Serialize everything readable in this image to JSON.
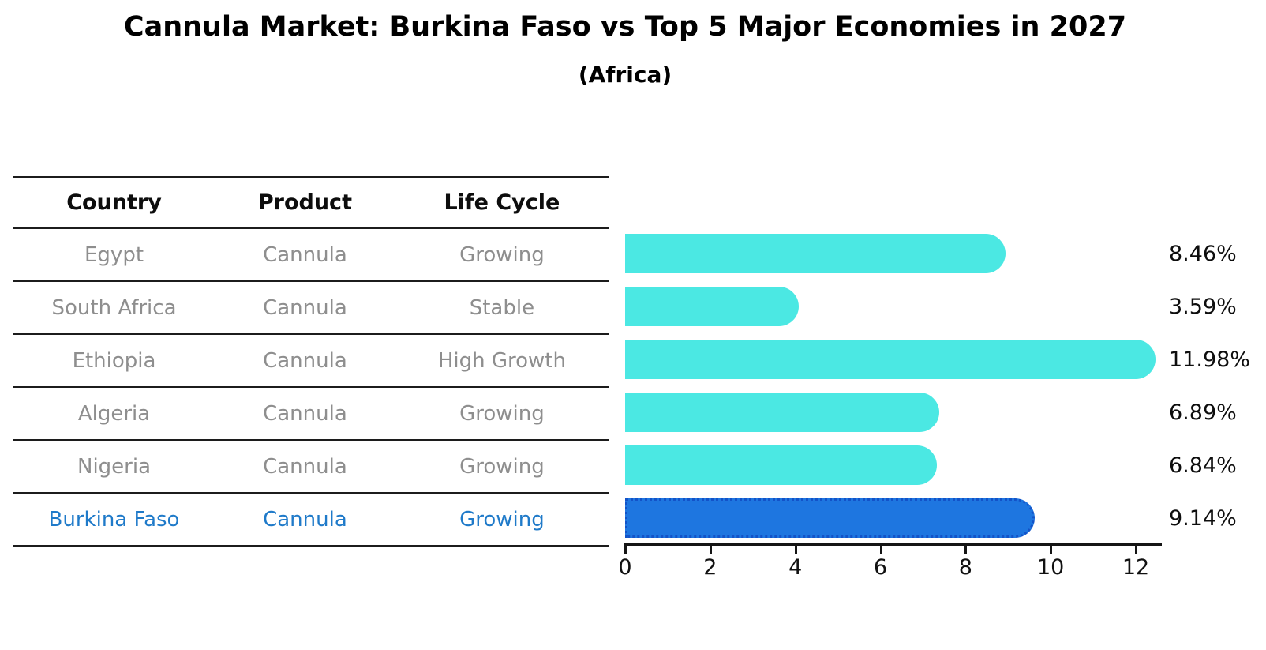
{
  "title": "Cannula Market: Burkina Faso vs Top 5 Major Economies in 2027",
  "subtitle": "(Africa)",
  "table": {
    "headers": [
      "Country",
      "Product",
      "Life Cycle"
    ],
    "rows": [
      {
        "country": "Egypt",
        "product": "Cannula",
        "life_cycle": "Growing",
        "highlight": false
      },
      {
        "country": "South Africa",
        "product": "Cannula",
        "life_cycle": "Stable",
        "highlight": false
      },
      {
        "country": "Ethiopia",
        "product": "Cannula",
        "life_cycle": "High Growth",
        "highlight": false
      },
      {
        "country": "Algeria",
        "product": "Cannula",
        "life_cycle": "Growing",
        "highlight": false
      },
      {
        "country": "Nigeria",
        "product": "Cannula",
        "life_cycle": "Growing",
        "highlight": true
      }
    ],
    "highlight_row": {
      "country": "Burkina Faso",
      "product": "Cannula",
      "life_cycle": "Growing"
    }
  },
  "chart_data": {
    "type": "bar",
    "orientation": "horizontal",
    "title": "Cannula Market: Burkina Faso vs Top 5 Major Economies in 2027",
    "subtitle": "(Africa)",
    "categories": [
      "Egypt",
      "South Africa",
      "Ethiopia",
      "Algeria",
      "Nigeria",
      "Burkina Faso"
    ],
    "values": [
      8.46,
      3.59,
      11.98,
      6.89,
      6.84,
      9.14
    ],
    "value_labels": [
      "8.46%",
      "3.59%",
      "11.98%",
      "6.89%",
      "6.84%",
      "9.14%"
    ],
    "highlight_index": 5,
    "xticks": [
      0,
      2,
      4,
      6,
      8,
      10,
      12
    ],
    "xlim": [
      0,
      12.6
    ],
    "grid": false,
    "legend": false,
    "colors": {
      "bar": "#4be8e3",
      "highlight_bar": "#1e76e0",
      "highlight_border": "#1353c8",
      "highlight_text": "#1f7ac9",
      "table_text": "#8e8e8e",
      "axis": "#151515"
    }
  }
}
